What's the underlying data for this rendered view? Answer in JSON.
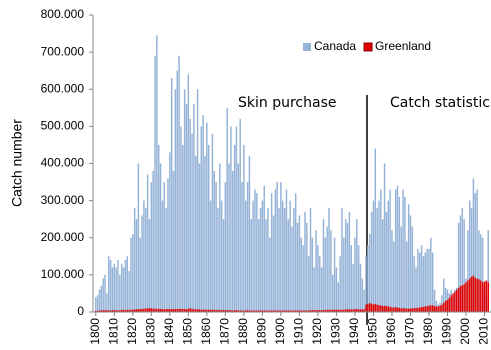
{
  "chart_data": {
    "type": "bar",
    "ylabel": "Catch number",
    "annotations": [
      "Skin purchase",
      "Catch statistics"
    ],
    "legend": "upper right",
    "x": [
      1800,
      1801,
      1802,
      1803,
      1804,
      1805,
      1806,
      1807,
      1808,
      1809,
      1810,
      1811,
      1812,
      1813,
      1814,
      1815,
      1816,
      1817,
      1818,
      1819,
      1820,
      1821,
      1822,
      1823,
      1824,
      1825,
      1826,
      1827,
      1828,
      1829,
      1830,
      1831,
      1832,
      1833,
      1834,
      1835,
      1836,
      1837,
      1838,
      1839,
      1840,
      1841,
      1842,
      1843,
      1844,
      1845,
      1846,
      1847,
      1848,
      1849,
      1850,
      1851,
      1852,
      1853,
      1854,
      1855,
      1856,
      1857,
      1858,
      1859,
      1860,
      1861,
      1862,
      1863,
      1864,
      1865,
      1866,
      1867,
      1868,
      1869,
      1870,
      1871,
      1872,
      1873,
      1874,
      1875,
      1876,
      1877,
      1878,
      1879,
      1880,
      1881,
      1882,
      1883,
      1884,
      1885,
      1886,
      1887,
      1888,
      1889,
      1890,
      1891,
      1892,
      1893,
      1894,
      1895,
      1896,
      1897,
      1898,
      1899,
      1900,
      1901,
      1902,
      1903,
      1904,
      1905,
      1906,
      1907,
      1908,
      1909,
      1910,
      1911,
      1912,
      1913,
      1914,
      1915,
      1916,
      1917,
      1918,
      1919,
      1920,
      1921,
      1922,
      1923,
      1924,
      1925,
      1926,
      1927,
      1928,
      1929,
      1930,
      1931,
      1932,
      1933,
      1934,
      1935,
      1936,
      1937,
      1938,
      1939,
      1940,
      1941,
      1942,
      1943,
      1944,
      1945,
      1946,
      1947,
      1948,
      1949,
      1950,
      1951,
      1952,
      1953,
      1954,
      1955,
      1956,
      1957,
      1958,
      1959,
      1960,
      1961,
      1962,
      1963,
      1964,
      1965,
      1966,
      1967,
      1968,
      1969,
      1970,
      1971,
      1972,
      1973,
      1974,
      1975,
      1976,
      1977,
      1978,
      1979,
      1980,
      1981,
      1982,
      1983,
      1984,
      1985,
      1986,
      1987,
      1988,
      1989,
      1990,
      1991,
      1992,
      1993,
      1994,
      1995,
      1996,
      1997,
      1998,
      1999,
      2000,
      2001,
      2002,
      2003,
      2004,
      2005,
      2006,
      2007,
      2008,
      2009,
      2010,
      2011,
      2012
    ],
    "series": [
      {
        "name": "Canada",
        "color": "#95b3d7",
        "values": [
          40000,
          45000,
          60000,
          70000,
          90000,
          100000,
          50000,
          150000,
          140000,
          120000,
          130000,
          120000,
          140000,
          100000,
          130000,
          120000,
          140000,
          150000,
          110000,
          200000,
          210000,
          280000,
          250000,
          400000,
          200000,
          260000,
          300000,
          280000,
          370000,
          250000,
          350000,
          380000,
          690000,
          745000,
          450000,
          400000,
          300000,
          350000,
          280000,
          360000,
          430000,
          630000,
          380000,
          600000,
          650000,
          690000,
          500000,
          450000,
          600000,
          560000,
          640000,
          520000,
          480000,
          560000,
          420000,
          600000,
          400000,
          500000,
          530000,
          420000,
          510000,
          450000,
          300000,
          480000,
          380000,
          350000,
          280000,
          400000,
          300000,
          250000,
          350000,
          550000,
          400000,
          500000,
          380000,
          450000,
          500000,
          400000,
          520000,
          350000,
          450000,
          300000,
          350000,
          420000,
          250000,
          300000,
          330000,
          320000,
          250000,
          280000,
          300000,
          340000,
          250000,
          280000,
          200000,
          320000,
          260000,
          330000,
          350000,
          280000,
          350000,
          300000,
          280000,
          330000,
          250000,
          300000,
          230000,
          280000,
          320000,
          240000,
          260000,
          200000,
          180000,
          270000,
          240000,
          150000,
          280000,
          200000,
          120000,
          220000,
          180000,
          150000,
          120000,
          250000,
          200000,
          230000,
          280000,
          220000,
          100000,
          200000,
          120000,
          80000,
          150000,
          280000,
          200000,
          250000,
          240000,
          270000,
          180000,
          130000,
          200000,
          250000,
          180000,
          130000,
          90000,
          60000,
          150000,
          180000,
          210000,
          270000,
          300000,
          440000,
          280000,
          300000,
          330000,
          250000,
          400000,
          270000,
          300000,
          330000,
          220000,
          190000,
          330000,
          340000,
          310000,
          230000,
          330000,
          310000,
          190000,
          290000,
          260000,
          230000,
          150000,
          120000,
          170000,
          160000,
          180000,
          150000,
          160000,
          170000,
          170000,
          200000,
          160000,
          60000,
          30000,
          20000,
          25000,
          45000,
          90000,
          65000,
          60000,
          50000,
          60000,
          40000,
          60000,
          65000,
          240000,
          260000,
          280000,
          250000,
          90000,
          220000,
          300000,
          280000,
          360000,
          320000,
          330000,
          220000,
          210000,
          200000,
          70000,
          40000,
          220000
        ]
      },
      {
        "name": "Greenland",
        "color": "#e00000",
        "values": [
          3000,
          3000,
          4000,
          4000,
          5000,
          5000,
          5000,
          4000,
          4000,
          5000,
          5000,
          5000,
          4000,
          5000,
          6000,
          5000,
          5000,
          6000,
          6000,
          6000,
          6000,
          7000,
          7000,
          8000,
          8000,
          8000,
          9000,
          9000,
          10000,
          10000,
          10000,
          9000,
          9000,
          8000,
          9000,
          8000,
          8000,
          7000,
          8000,
          8000,
          8000,
          8000,
          7000,
          8000,
          8000,
          9000,
          8000,
          8000,
          8000,
          7000,
          9000,
          10000,
          8000,
          8000,
          7000,
          7000,
          7000,
          6000,
          7000,
          6000,
          6000,
          6000,
          6000,
          6000,
          6000,
          5000,
          6000,
          5000,
          5000,
          5000,
          5000,
          5000,
          5000,
          5000,
          4000,
          5000,
          5000,
          4000,
          4000,
          4000,
          4000,
          4000,
          5000,
          4000,
          4000,
          4000,
          4000,
          4000,
          4000,
          4000,
          4000,
          4000,
          4000,
          4000,
          4000,
          4000,
          4000,
          4000,
          4000,
          4000,
          4000,
          4000,
          4000,
          4000,
          4000,
          4000,
          4000,
          4000,
          4000,
          4000,
          4000,
          4000,
          4000,
          4000,
          4000,
          4000,
          5000,
          5000,
          5000,
          5000,
          5000,
          5000,
          5000,
          5000,
          5000,
          6000,
          6000,
          6000,
          6000,
          6000,
          6000,
          6000,
          6000,
          6000,
          6000,
          7000,
          7000,
          7000,
          7000,
          7000,
          8000,
          8000,
          7000,
          7000,
          7000,
          7000,
          20000,
          22000,
          24000,
          22000,
          20000,
          22000,
          20000,
          18000,
          18000,
          16000,
          17000,
          16000,
          15000,
          14000,
          12000,
          12000,
          13000,
          12000,
          11000,
          10000,
          10000,
          10000,
          9000,
          9000,
          9000,
          10000,
          10000,
          11000,
          11000,
          12000,
          13000,
          14000,
          15000,
          16000,
          17000,
          18000,
          18000,
          16000,
          15000,
          15000,
          17000,
          20000,
          25000,
          30000,
          33000,
          38000,
          45000,
          50000,
          55000,
          60000,
          65000,
          70000,
          72000,
          75000,
          80000,
          85000,
          90000,
          95000,
          98000,
          92000,
          90000,
          88000,
          85000,
          80000,
          82000,
          85000,
          80000
        ]
      }
    ],
    "xlim": [
      1798.5,
      2013.5
    ],
    "xticks": [
      1800,
      1810,
      1820,
      1830,
      1840,
      1850,
      1860,
      1870,
      1880,
      1890,
      1900,
      1910,
      1920,
      1930,
      1940,
      1950,
      1960,
      1970,
      1980,
      1990,
      2000,
      2010
    ],
    "ylim": [
      0,
      800000
    ],
    "yticks": [
      0,
      {
        "value": 100000,
        "label": "100.000"
      },
      {
        "value": 200000,
        "label": "200.000"
      },
      {
        "value": 300000,
        "label": "300.000"
      },
      {
        "value": 400000,
        "label": "400.000"
      },
      {
        "value": 500000,
        "label": "500.000"
      },
      {
        "value": 600000,
        "label": "600.000"
      },
      {
        "value": 700000,
        "label": "700.000"
      },
      {
        "value": 800000,
        "label": "800.000"
      }
    ]
  }
}
